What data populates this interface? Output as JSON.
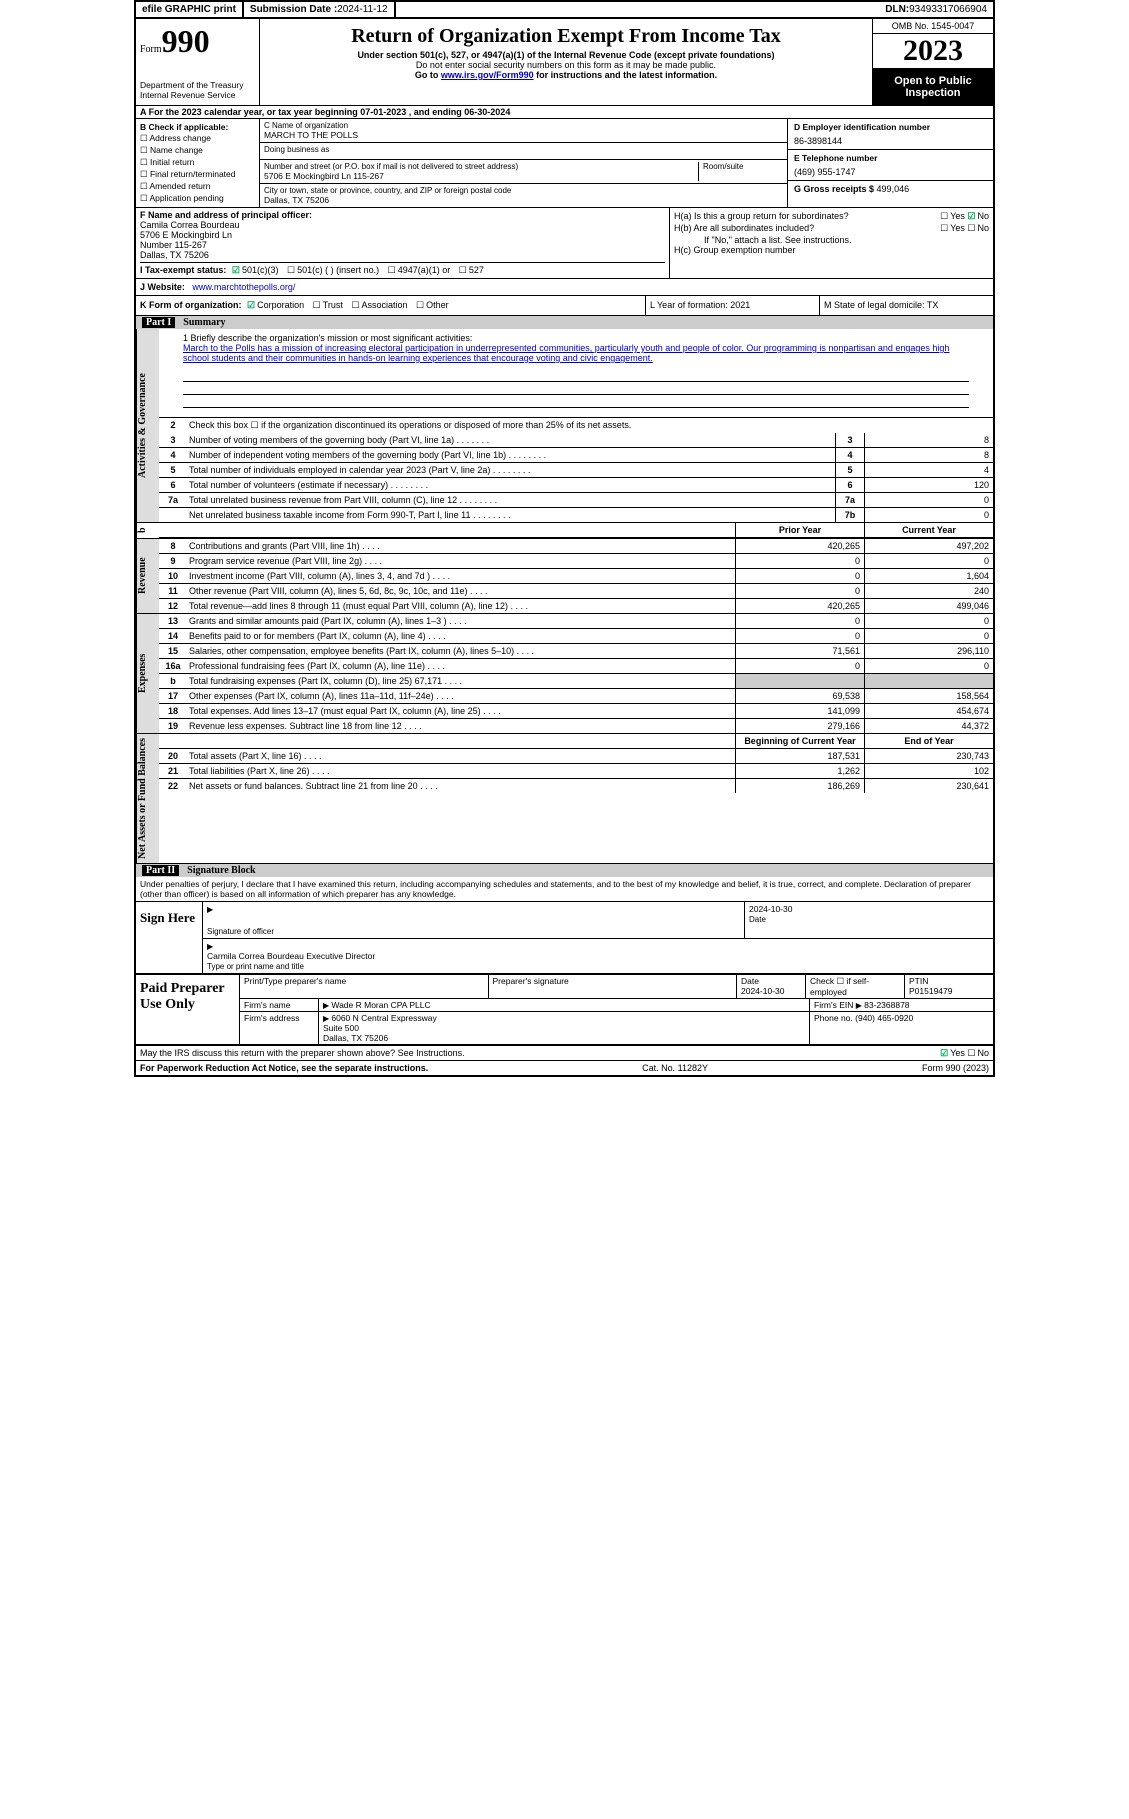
{
  "topbar": {
    "efile": "efile GRAPHIC print",
    "submission_label": "Submission Date : ",
    "submission_date": "2024-11-12",
    "dln_label": "DLN: ",
    "dln": "93493317066904"
  },
  "header": {
    "form_word": "Form",
    "form_num": "990",
    "dept": "Department of the Treasury Internal Revenue Service",
    "title": "Return of Organization Exempt From Income Tax",
    "sub1": "Under section 501(c), 527, or 4947(a)(1) of the Internal Revenue Code (except private foundations)",
    "sub2": "Do not enter social security numbers on this form as it may be made public.",
    "sub3_a": "Go to ",
    "sub3_link": "www.irs.gov/Form990",
    "sub3_b": " for instructions and the latest information.",
    "omb": "OMB No. 1545-0047",
    "year": "2023",
    "inspect": "Open to Public Inspection"
  },
  "row_a": "A For the 2023 calendar year, or tax year beginning 07-01-2023   , and ending 06-30-2024",
  "col_b": {
    "title": "B Check if applicable:",
    "items": [
      "Address change",
      "Name change",
      "Initial return",
      "Final return/terminated",
      "Amended return",
      "Application pending"
    ]
  },
  "col_c": {
    "name_label": "C Name of organization",
    "name": "MARCH TO THE POLLS",
    "dba_label": "Doing business as",
    "addr_label": "Number and street (or P.O. box if mail is not delivered to street address)",
    "addr": "5706 E Mockingbird Ln 115-267",
    "room_label": "Room/suite",
    "city_label": "City or town, state or province, country, and ZIP or foreign postal code",
    "city": "Dallas, TX  75206"
  },
  "col_d": {
    "label": "D Employer identification number",
    "ein": "86-3898144"
  },
  "col_e": {
    "label": "E Telephone number",
    "phone": "(469) 955-1747"
  },
  "col_g": {
    "label": "G Gross receipts $ ",
    "amount": "499,046"
  },
  "col_f": {
    "label": "F Name and address of principal officer:",
    "name": "Camila Correa Bourdeau",
    "addr1": "5706 E Mockingbird Ln",
    "addr2": "Number 115-267",
    "city": "Dallas, TX  75206"
  },
  "col_h": {
    "ha": "H(a)  Is this a group return for subordinates?",
    "hb": "H(b)  Are all subordinates included?",
    "hb_note": "If \"No,\" attach a list. See instructions.",
    "hc": "H(c)  Group exemption number"
  },
  "row_i": {
    "label": "I   Tax-exempt status:",
    "opts": [
      "501(c)(3)",
      "501(c) (  ) (insert no.)",
      "4947(a)(1) or",
      "527"
    ]
  },
  "row_j": {
    "label": "J   Website:",
    "url": "www.marchtothepolls.org/"
  },
  "row_k": {
    "label": "K Form of organization:",
    "opts": [
      "Corporation",
      "Trust",
      "Association",
      "Other"
    ]
  },
  "row_l": "L Year of formation: 2021",
  "row_m": "M State of legal domicile: TX",
  "part1": {
    "num": "Part I",
    "title": "Summary",
    "mission_label": "1   Briefly describe the organization's mission or most significant activities:",
    "mission": "March to the Polls has a mission of increasing electoral participation in underrepresented communities, particularly youth and people of color. Our programming is nonpartisan and engages high school students and their communities in hands-on learning experiences that encourage voting and civic engagement.",
    "line2": "Check this box ☐  if the organization discontinued its operations or disposed of more than 25% of its net assets.",
    "gov_rows": [
      {
        "n": "3",
        "d Desc": "Number of voting members of the governing body (Part VI, line 1a)",
        "box": "3",
        "v": "8"
      },
      {
        "n": "4",
        "desc": "Number of independent voting members of the governing body (Part VI, line 1b)",
        "box": "4",
        "v": "8"
      },
      {
        "n": "5",
        "desc": "Total number of individuals employed in calendar year 2023 (Part V, line 2a)",
        "box": "5",
        "v": "4"
      },
      {
        "n": "6",
        "desc": "Total number of volunteers (estimate if necessary)",
        "box": "6",
        "v": "120"
      },
      {
        "n": "7a",
        "desc": "Total unrelated business revenue from Part VIII, column (C), line 12",
        "box": "7a",
        "v": "0"
      },
      {
        "n": "",
        "desc": "Net unrelated business taxable income from Form 990-T, Part I, line 11",
        "box": "7b",
        "v": "0"
      }
    ],
    "th_prior": "Prior Year",
    "th_current": "Current Year",
    "rev_rows": [
      {
        "n": "8",
        "desc": "Contributions and grants (Part VIII, line 1h)",
        "p": "420,265",
        "c": "497,202"
      },
      {
        "n": "9",
        "desc": "Program service revenue (Part VIII, line 2g)",
        "p": "0",
        "c": "0"
      },
      {
        "n": "10",
        "desc": "Investment income (Part VIII, column (A), lines 3, 4, and 7d )",
        "p": "0",
        "c": "1,604"
      },
      {
        "n": "11",
        "desc": "Other revenue (Part VIII, column (A), lines 5, 6d, 8c, 9c, 10c, and 11e)",
        "p": "0",
        "c": "240"
      },
      {
        "n": "12",
        "desc": "Total revenue—add lines 8 through 11 (must equal Part VIII, column (A), line 12)",
        "p": "420,265",
        "c": "499,046"
      }
    ],
    "exp_rows": [
      {
        "n": "13",
        "desc": "Grants and similar amounts paid (Part IX, column (A), lines 1–3 )",
        "p": "0",
        "c": "0"
      },
      {
        "n": "14",
        "desc": "Benefits paid to or for members (Part IX, column (A), line 4)",
        "p": "0",
        "c": "0"
      },
      {
        "n": "15",
        "desc": "Salaries, other compensation, employee benefits (Part IX, column (A), lines 5–10)",
        "p": "71,561",
        "c": "296,110"
      },
      {
        "n": "16a",
        "desc": "Professional fundraising fees (Part IX, column (A), line 11e)",
        "p": "0",
        "c": "0"
      },
      {
        "n": "b",
        "desc": "Total fundraising expenses (Part IX, column (D), line 25) 67,171",
        "p": "",
        "c": "",
        "shade": true
      },
      {
        "n": "17",
        "desc": "Other expenses (Part IX, column (A), lines 11a–11d, 11f–24e)",
        "p": "69,538",
        "c": "158,564"
      },
      {
        "n": "18",
        "desc": "Total expenses. Add lines 13–17 (must equal Part IX, column (A), line 25)",
        "p": "141,099",
        "c": "454,674"
      },
      {
        "n": "19",
        "desc": "Revenue less expenses. Subtract line 18 from line 12",
        "p": "279,166",
        "c": "44,372"
      }
    ],
    "th_begin": "Beginning of Current Year",
    "th_end": "End of Year",
    "net_rows": [
      {
        "n": "20",
        "desc": "Total assets (Part X, line 16)",
        "p": "187,531",
        "c": "230,743"
      },
      {
        "n": "21",
        "desc": "Total liabilities (Part X, line 26)",
        "p": "1,262",
        "c": "102"
      },
      {
        "n": "22",
        "desc": "Net assets or fund balances. Subtract line 21 from line 20",
        "p": "186,269",
        "c": "230,641"
      }
    ]
  },
  "part2": {
    "num": "Part II",
    "title": "Signature Block",
    "decl": "Under penalties of perjury, I declare that I have examined this return, including accompanying schedules and statements, and to the best of my knowledge and belief, it is true, correct, and complete. Declaration of preparer (other than officer) is based on all information of which preparer has any knowledge."
  },
  "sign": {
    "left": "Sign Here",
    "sig_label": "Signature of officer",
    "date_label": "Date",
    "date": "2024-10-30",
    "name": "Carmila Correa Bourdeau  Executive Director",
    "name_label": "Type or print name and title"
  },
  "prep": {
    "left": "Paid Preparer Use Only",
    "h1": "Print/Type preparer's name",
    "h2": "Preparer's signature",
    "h3": "Date",
    "h3v": "2024-10-30",
    "h4": "Check ☐ if self-employed",
    "h5": "PTIN",
    "h5v": "P01519479",
    "firm_label": "Firm's name",
    "firm": "Wade R Moran CPA PLLC",
    "ein_label": "Firm's EIN",
    "ein": "83-2368878",
    "addr_label": "Firm's address",
    "addr": "6060 N Central Expressway\nSuite 500\nDallas, TX  75206",
    "phone_label": "Phone no.",
    "phone": "(940) 465-0920"
  },
  "discuss": "May the IRS discuss this return with the preparer shown above? See Instructions.",
  "footer": {
    "left": "For Paperwork Reduction Act Notice, see the separate instructions.",
    "mid": "Cat. No. 11282Y",
    "right": "Form 990 (2023)"
  }
}
